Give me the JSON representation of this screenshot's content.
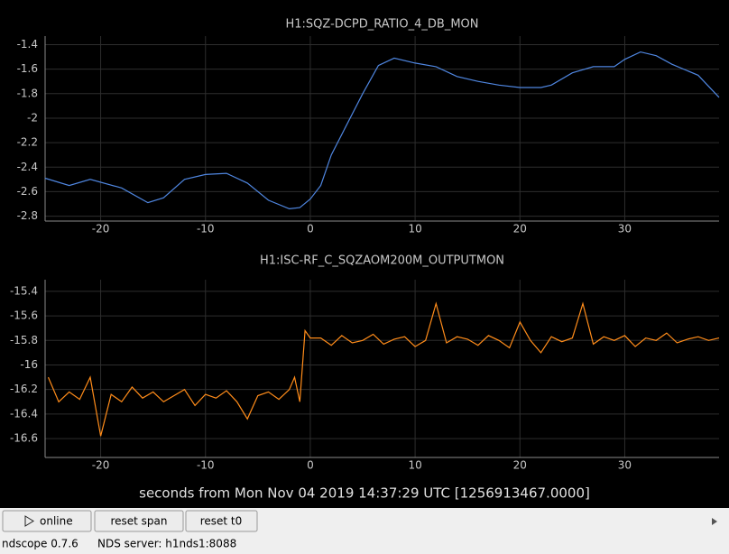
{
  "chart_data": [
    {
      "type": "line",
      "title": "H1:SQZ-DCPD_RATIO_4_DB_MON",
      "color": "#4f86e0",
      "x": [
        -25.3,
        -23,
        -21,
        -18,
        -15.5,
        -14,
        -12,
        -10,
        -8,
        -6,
        -4,
        -2,
        -1,
        0,
        1,
        2,
        3.5,
        5,
        6.5,
        8,
        10,
        12,
        14,
        16,
        18,
        20,
        22,
        23,
        25,
        27,
        29,
        30,
        31.5,
        33,
        34.5,
        37,
        39
      ],
      "values": [
        -2.49,
        -2.55,
        -2.5,
        -2.57,
        -2.69,
        -2.65,
        -2.5,
        -2.46,
        -2.45,
        -2.53,
        -2.67,
        -2.74,
        -2.73,
        -2.66,
        -2.55,
        -2.3,
        -2.05,
        -1.8,
        -1.57,
        -1.51,
        -1.55,
        -1.58,
        -1.66,
        -1.7,
        -1.73,
        -1.75,
        -1.75,
        -1.73,
        -1.63,
        -1.58,
        -1.58,
        -1.52,
        -1.46,
        -1.49,
        -1.56,
        -1.65,
        -1.83
      ],
      "xlim": [
        -25.3,
        39
      ],
      "xticks": [
        -20,
        -10,
        0,
        10,
        20,
        30
      ],
      "ylim": [
        -2.84,
        -1.33
      ],
      "yticks": [
        -1.4,
        -1.6,
        -1.8,
        -2,
        -2.2,
        -2.4,
        -2.6,
        -2.8
      ],
      "grid": true
    },
    {
      "type": "line",
      "title": "H1:ISC-RF_C_SQZAOM200M_OUTPUTMON",
      "color": "#ff8c1a",
      "x": [
        -25,
        -24,
        -23,
        -22,
        -21,
        -20,
        -19,
        -18,
        -17,
        -16,
        -15,
        -14,
        -13,
        -12,
        -11,
        -10,
        -9,
        -8,
        -7,
        -6,
        -5,
        -4,
        -3,
        -2,
        -1.5,
        -1,
        -0.5,
        0,
        1,
        2,
        3,
        4,
        5,
        6,
        7,
        8,
        9,
        10,
        11,
        12,
        13,
        14,
        15,
        16,
        17,
        18,
        19,
        20,
        21,
        22,
        23,
        24,
        25,
        26,
        27,
        28,
        29,
        30,
        31,
        32,
        33,
        34,
        35,
        36,
        37,
        38,
        39
      ],
      "values": [
        -16.1,
        -16.3,
        -16.22,
        -16.28,
        -16.1,
        -16.58,
        -16.24,
        -16.3,
        -16.18,
        -16.27,
        -16.22,
        -16.3,
        -16.25,
        -16.2,
        -16.33,
        -16.24,
        -16.27,
        -16.21,
        -16.3,
        -16.44,
        -16.25,
        -16.22,
        -16.28,
        -16.2,
        -16.1,
        -16.3,
        -15.72,
        -15.78,
        -15.78,
        -15.84,
        -15.76,
        -15.82,
        -15.8,
        -15.75,
        -15.83,
        -15.79,
        -15.77,
        -15.85,
        -15.8,
        -15.5,
        -15.82,
        -15.77,
        -15.79,
        -15.84,
        -15.76,
        -15.8,
        -15.86,
        -15.65,
        -15.8,
        -15.9,
        -15.77,
        -15.81,
        -15.78,
        -15.5,
        -15.83,
        -15.77,
        -15.8,
        -15.76,
        -15.85,
        -15.78,
        -15.8,
        -15.74,
        -15.82,
        -15.79,
        -15.77,
        -15.8,
        -15.78
      ],
      "xlim": [
        -25.3,
        39
      ],
      "xticks": [
        -20,
        -10,
        0,
        10,
        20,
        30
      ],
      "ylim": [
        -16.754,
        -15.305
      ],
      "yticks": [
        -15.4,
        -15.6,
        -15.8,
        -16,
        -16.2,
        -16.4,
        -16.6
      ],
      "grid": true
    }
  ],
  "window": {
    "xlabel": "seconds from Mon Nov 04 2019 14:37:29 UTC [1256913467.0000]",
    "buttons": [
      "online",
      "reset span",
      "reset t0"
    ],
    "status": [
      "ndscope 0.7.6",
      "NDS server: h1nds1:8088"
    ]
  }
}
